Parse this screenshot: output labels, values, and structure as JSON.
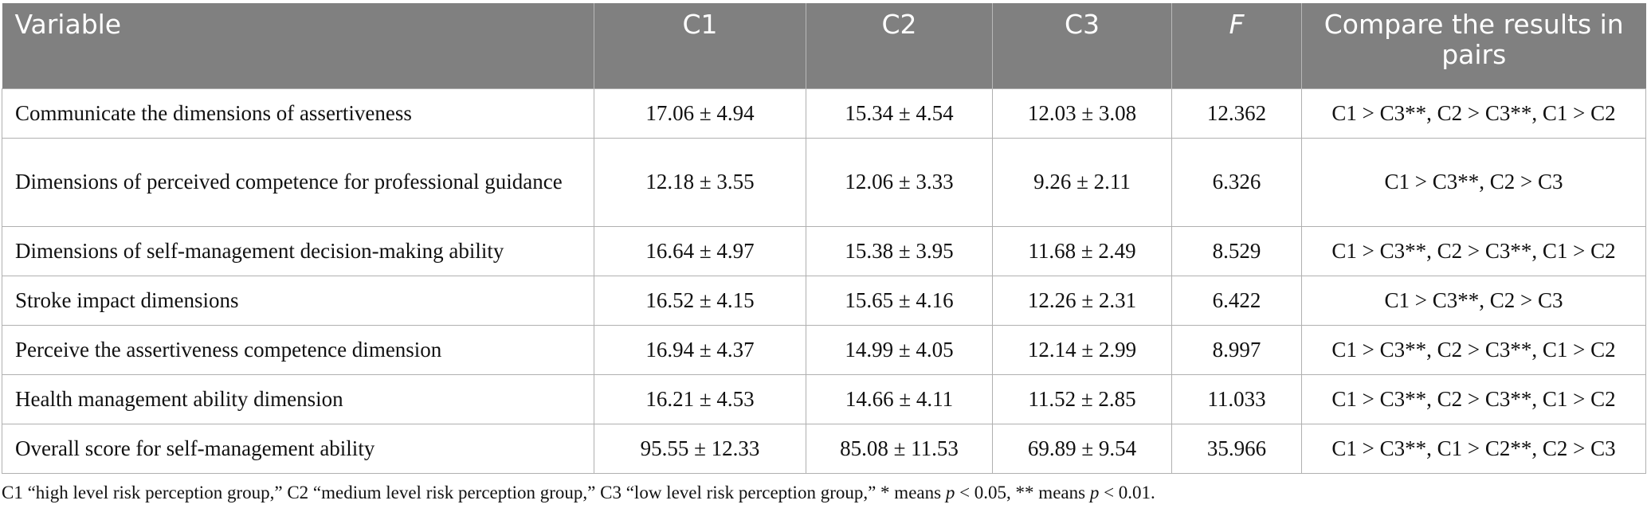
{
  "table": {
    "headers": {
      "variable": "Variable",
      "c1": "C1",
      "c2": "C2",
      "c3": "C3",
      "f": "F",
      "compare": "Compare the results in pairs"
    },
    "rows": [
      {
        "variable": "Communicate the dimensions of assertiveness",
        "c1": "17.06 ± 4.94",
        "c2": "15.34 ± 4.54",
        "c3": "12.03 ± 3.08",
        "f": "12.362",
        "compare": "C1 > C3**, C2 > C3**, C1 > C2"
      },
      {
        "variable": "Dimensions of perceived competence for professional guidance",
        "c1": "12.18 ± 3.55",
        "c2": "12.06 ± 3.33",
        "c3": "9.26 ± 2.11",
        "f": "6.326",
        "compare": "C1 > C3**, C2 > C3"
      },
      {
        "variable": "Dimensions of self-management decision-making ability",
        "c1": "16.64 ± 4.97",
        "c2": "15.38 ± 3.95",
        "c3": "11.68 ± 2.49",
        "f": "8.529",
        "compare": "C1 > C3**, C2 > C3**, C1 > C2"
      },
      {
        "variable": "Stroke impact dimensions",
        "c1": "16.52 ± 4.15",
        "c2": "15.65 ± 4.16",
        "c3": "12.26 ± 2.31",
        "f": "6.422",
        "compare": "C1 > C3**, C2 > C3"
      },
      {
        "variable": "Perceive the assertiveness competence dimension",
        "c1": "16.94 ± 4.37",
        "c2": "14.99 ± 4.05",
        "c3": "12.14 ± 2.99",
        "f": "8.997",
        "compare": "C1 > C3**, C2 > C3**, C1 > C2"
      },
      {
        "variable": "Health management ability dimension",
        "c1": "16.21 ± 4.53",
        "c2": "14.66 ± 4.11",
        "c3": "11.52 ± 2.85",
        "f": "11.033",
        "compare": "C1 > C3**, C2 > C3**, C1 > C2"
      },
      {
        "variable": "Overall score for self-management ability",
        "c1": "95.55 ± 12.33",
        "c2": "85.08 ± 11.53",
        "c3": "69.89 ± 9.54",
        "f": "35.966",
        "compare": "C1 > C3**, C1 > C2**, C2 > C3"
      }
    ]
  },
  "footnote": {
    "part1": "C1 “high level risk perception group,” C2 “medium level risk perception group,” C3 “low level risk perception group,” * means ",
    "p1": "p",
    "part2": " < 0.05, ** means ",
    "p2": "p",
    "part3": " < 0.01."
  },
  "colors": {
    "header_bg": "#808080",
    "header_text": "#ffffff",
    "grid": "#b0b0b0"
  }
}
